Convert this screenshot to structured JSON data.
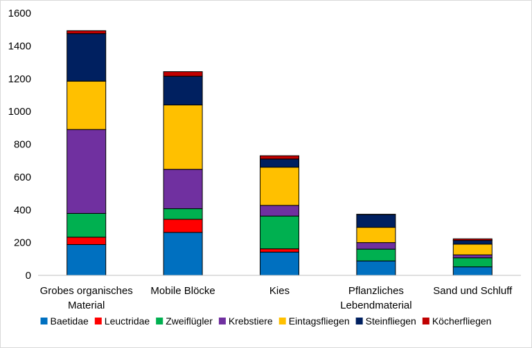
{
  "chart_data": {
    "type": "bar",
    "stacked": true,
    "categories": [
      [
        "Grobes organisches",
        "Material"
      ],
      [
        "Mobile Blöcke"
      ],
      [
        "Kies"
      ],
      [
        "Pflanzliches",
        "Lebendmaterial"
      ],
      [
        "Sand und Schluff"
      ]
    ],
    "series": [
      {
        "name": "Baetidae",
        "color": "#0070C0",
        "values": [
          188,
          262,
          142,
          88,
          52
        ]
      },
      {
        "name": "Leuctridae",
        "color": "#FF0000",
        "values": [
          45,
          80,
          20,
          0,
          0
        ]
      },
      {
        "name": "Zweiflügler",
        "color": "#00B050",
        "values": [
          145,
          65,
          200,
          72,
          55
        ]
      },
      {
        "name": "Krebstiere",
        "color": "#7030A0",
        "values": [
          512,
          240,
          65,
          40,
          18
        ]
      },
      {
        "name": "Eintagsfliegen",
        "color": "#FFC000",
        "values": [
          295,
          393,
          233,
          93,
          65
        ]
      },
      {
        "name": "Steinfliegen",
        "color": "#002060",
        "values": [
          290,
          175,
          50,
          78,
          23
        ]
      },
      {
        "name": "Köcherfliegen",
        "color": "#C00000",
        "values": [
          18,
          28,
          20,
          2,
          10
        ]
      }
    ],
    "ylim": [
      0,
      1600
    ],
    "yticks": [
      "0",
      "200",
      "400",
      "600",
      "800",
      "1000",
      "1200",
      "1400",
      "1600"
    ],
    "grid": false,
    "legend_position": "bottom"
  }
}
